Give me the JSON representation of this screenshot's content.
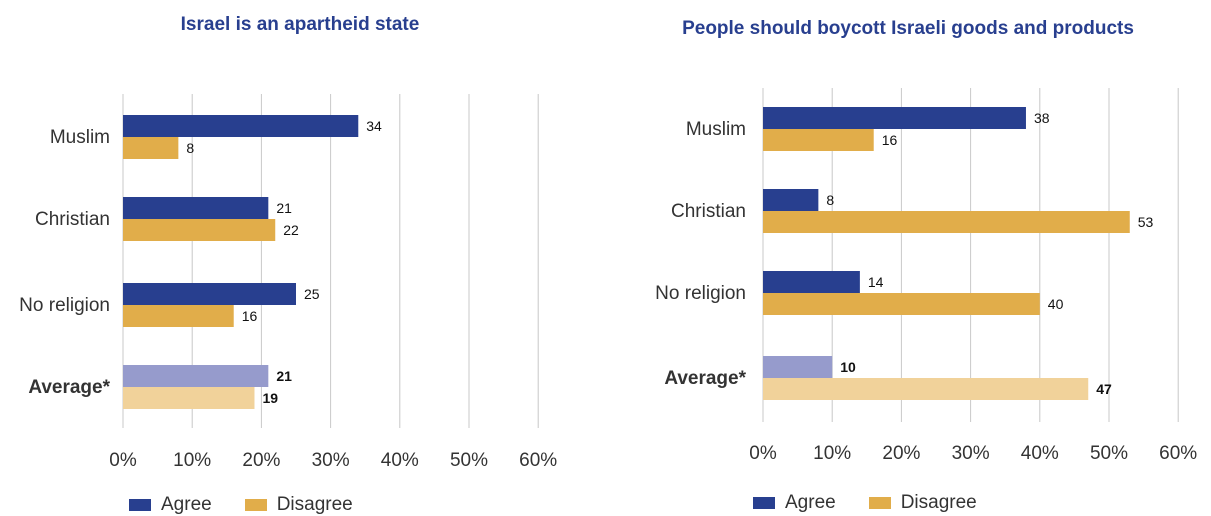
{
  "colors": {
    "agree": "#283f8f",
    "disagree": "#e1ad4a",
    "agree_avg": "#969bcc",
    "disagree_avg": "#f1d29a",
    "grid": "#c8c8c8",
    "title": "#283f8f"
  },
  "chart_data": [
    {
      "type": "bar",
      "orientation": "horizontal",
      "title": "Israel is an apartheid state",
      "categories": [
        "Muslim",
        "Christian",
        "No religion",
        "Average*"
      ],
      "series": [
        {
          "name": "Agree",
          "values": [
            34,
            21,
            25,
            21
          ]
        },
        {
          "name": "Disagree",
          "values": [
            8,
            22,
            16,
            19
          ]
        }
      ],
      "xlim": [
        0,
        60
      ],
      "xticks": [
        "0%",
        "10%",
        "20%",
        "30%",
        "40%",
        "50%",
        "60%"
      ],
      "grid": true,
      "legend": "bottom-left",
      "legend_labels": [
        "Agree",
        "Disagree"
      ]
    },
    {
      "type": "bar",
      "orientation": "horizontal",
      "title": "People should boycott Israeli goods and products",
      "categories": [
        "Muslim",
        "Christian",
        "No religion",
        "Average*"
      ],
      "series": [
        {
          "name": "Agree",
          "values": [
            38,
            8,
            14,
            10
          ]
        },
        {
          "name": "Disagree",
          "values": [
            16,
            53,
            40,
            47
          ]
        }
      ],
      "xlim": [
        0,
        60
      ],
      "xticks": [
        "0%",
        "10%",
        "20%",
        "30%",
        "40%",
        "50%",
        "60%"
      ],
      "grid": true,
      "legend": "bottom-left",
      "legend_labels": [
        "Agree",
        "Disagree"
      ]
    }
  ]
}
